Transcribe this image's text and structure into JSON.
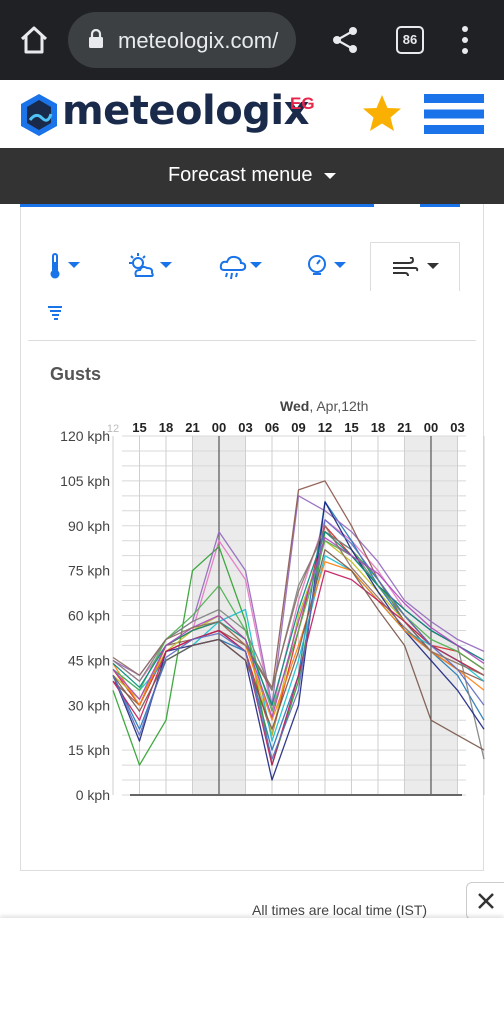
{
  "browser": {
    "url": "meteologix.com/",
    "tab_count": "86"
  },
  "site": {
    "logo_text": "meteologix",
    "logo_region": "EG",
    "menu_label": "Forecast menue"
  },
  "params": [
    {
      "name": "temperature-icon",
      "active": false
    },
    {
      "name": "sun-cloud-icon",
      "active": false
    },
    {
      "name": "rain-cloud-icon",
      "active": false
    },
    {
      "name": "gauge-icon",
      "active": false
    },
    {
      "name": "wind-icon",
      "active": true
    },
    {
      "name": "tornado-icon",
      "active": false
    }
  ],
  "colors": {
    "accent": "#1a73e8",
    "star": "#f9b000",
    "dark_bar": "#333333"
  },
  "footer": {
    "note": "All times are local time (IST)"
  },
  "chart_data": {
    "type": "line",
    "title": "Gusts",
    "date_label_day": "Wed",
    "date_label_rest": ", Apr,12th",
    "x_tick_labels": [
      "12",
      "15",
      "18",
      "21",
      "00",
      "03",
      "06",
      "09",
      "12",
      "15",
      "18",
      "21",
      "00",
      "03"
    ],
    "y_tick_labels": [
      "0 kph",
      "15 kph",
      "30 kph",
      "45 kph",
      "60 kph",
      "75 kph",
      "90 kph",
      "105 kph",
      "120 kph"
    ],
    "ylim": [
      0,
      120
    ],
    "y_unit": "kph",
    "x_hours": [
      12,
      15,
      18,
      21,
      24,
      27,
      30,
      33,
      36,
      39,
      42,
      45,
      48,
      51,
      54
    ],
    "night_bands": [
      [
        21,
        27
      ],
      [
        45,
        51
      ]
    ],
    "grid": true,
    "series": [
      {
        "color": "#e377c2",
        "values": [
          45,
          38,
          50,
          55,
          85,
          72,
          28,
          65,
          92,
          85,
          75,
          62,
          55,
          50,
          45
        ]
      },
      {
        "color": "#1f77b4",
        "values": [
          40,
          22,
          45,
          50,
          52,
          48,
          15,
          40,
          98,
          85,
          70,
          58,
          48,
          40,
          25
        ]
      },
      {
        "color": "#2ca02c",
        "values": [
          35,
          10,
          25,
          75,
          83,
          58,
          10,
          38,
          88,
          82,
          72,
          60,
          50,
          45,
          40
        ]
      },
      {
        "color": "#d62728",
        "values": [
          42,
          30,
          48,
          52,
          55,
          48,
          20,
          55,
          90,
          80,
          70,
          60,
          50,
          48,
          42
        ]
      },
      {
        "color": "#9467bd",
        "values": [
          45,
          40,
          52,
          58,
          88,
          75,
          30,
          100,
          95,
          88,
          78,
          65,
          58,
          52,
          48
        ]
      },
      {
        "color": "#8c564b",
        "values": [
          38,
          30,
          50,
          52,
          55,
          50,
          35,
          102,
          105,
          90,
          72,
          58,
          48,
          42,
          38
        ]
      },
      {
        "color": "#bcbd22",
        "values": [
          40,
          32,
          48,
          55,
          60,
          52,
          20,
          60,
          85,
          78,
          68,
          58,
          50,
          45,
          40
        ]
      },
      {
        "color": "#17becf",
        "values": [
          42,
          35,
          45,
          50,
          58,
          62,
          18,
          45,
          80,
          75,
          65,
          55,
          50,
          45,
          38
        ]
      },
      {
        "color": "#7f7f7f",
        "values": [
          45,
          38,
          52,
          58,
          62,
          55,
          35,
          70,
          88,
          82,
          70,
          62,
          55,
          50,
          12
        ]
      },
      {
        "color": "#1a237e",
        "values": [
          40,
          18,
          48,
          50,
          52,
          45,
          5,
          30,
          98,
          82,
          68,
          55,
          45,
          35,
          22
        ]
      },
      {
        "color": "#ff7f0e",
        "values": [
          44,
          30,
          50,
          55,
          58,
          50,
          25,
          50,
          78,
          75,
          65,
          55,
          48,
          42,
          35
        ]
      },
      {
        "color": "#c2185b",
        "values": [
          38,
          25,
          48,
          52,
          55,
          48,
          10,
          40,
          75,
          72,
          65,
          58,
          50,
          45,
          40
        ]
      },
      {
        "color": "#4caf50",
        "values": [
          42,
          35,
          52,
          60,
          70,
          55,
          28,
          55,
          85,
          80,
          70,
          60,
          52,
          48,
          42
        ]
      },
      {
        "color": "#795548",
        "values": [
          40,
          28,
          45,
          50,
          52,
          45,
          22,
          48,
          82,
          75,
          62,
          50,
          25,
          20,
          15
        ]
      },
      {
        "color": "#00897b",
        "values": [
          44,
          36,
          50,
          55,
          58,
          52,
          30,
          62,
          88,
          80,
          70,
          62,
          55,
          50,
          45
        ]
      },
      {
        "color": "#5c6bc0",
        "values": [
          40,
          20,
          46,
          52,
          54,
          48,
          12,
          35,
          92,
          84,
          72,
          60,
          50,
          42,
          30
        ]
      },
      {
        "color": "#ab47bc",
        "values": [
          42,
          32,
          50,
          56,
          60,
          52,
          26,
          58,
          86,
          80,
          74,
          64,
          56,
          50,
          44
        ]
      },
      {
        "color": "#8d6e63",
        "values": [
          46,
          40,
          52,
          56,
          58,
          50,
          36,
          68,
          90,
          76,
          66,
          56,
          48,
          44,
          40
        ]
      }
    ]
  }
}
